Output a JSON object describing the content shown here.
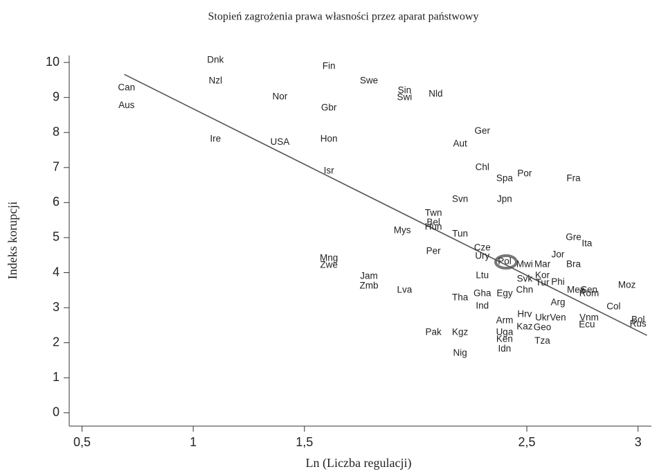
{
  "chart_data": {
    "type": "scatter",
    "title": "Stopień zagrożenia prawa własności przez aparat państwowy",
    "x_label": "Ln (Liczba regulacji)",
    "y_label": "Indeks korupcji",
    "xlim": [
      0.43,
      3.06
    ],
    "ylim": [
      -0.38,
      10.2
    ],
    "xticks": [
      {
        "value": 0.5,
        "label": "0,5"
      },
      1,
      {
        "value": 1.5,
        "label": "1,5"
      },
      {
        "value": 2.5,
        "label": "2,5"
      },
      3
    ],
    "yticks": [
      0,
      1,
      2,
      3,
      4,
      5,
      6,
      7,
      8,
      9,
      10
    ],
    "color": "#222222",
    "trend_line": {
      "x": [
        0.69,
        3.04
      ],
      "y": [
        9.66,
        2.21
      ],
      "color": "#555555"
    },
    "points": [
      {
        "label": "Can",
        "x": 0.7,
        "y": 9.27
      },
      {
        "label": "Aus",
        "x": 0.7,
        "y": 8.77
      },
      {
        "label": "Dnk",
        "x": 1.1,
        "y": 10.06
      },
      {
        "label": "Nzl",
        "x": 1.1,
        "y": 9.47
      },
      {
        "label": "Nor",
        "x": 1.39,
        "y": 9.01
      },
      {
        "label": "Ire",
        "x": 1.1,
        "y": 7.81
      },
      {
        "label": "USA",
        "x": 1.39,
        "y": 7.72
      },
      {
        "label": "Fin",
        "x": 1.61,
        "y": 9.88
      },
      {
        "label": "Gbr",
        "x": 1.61,
        "y": 8.7
      },
      {
        "label": "Hon",
        "x": 1.61,
        "y": 7.81
      },
      {
        "label": "Isr",
        "x": 1.61,
        "y": 6.9
      },
      {
        "label": "Swe",
        "x": 1.79,
        "y": 9.47
      },
      {
        "label": "Sin",
        "x": 1.95,
        "y": 9.19
      },
      {
        "label": "Swi",
        "x": 1.95,
        "y": 8.99
      },
      {
        "label": "Nld",
        "x": 2.09,
        "y": 9.09
      },
      {
        "label": "Ger",
        "x": 2.3,
        "y": 8.04
      },
      {
        "label": "Aut",
        "x": 2.2,
        "y": 7.67
      },
      {
        "label": "Chl",
        "x": 2.3,
        "y": 7.0
      },
      {
        "label": "Spa",
        "x": 2.4,
        "y": 6.68
      },
      {
        "label": "Por",
        "x": 2.49,
        "y": 6.82
      },
      {
        "label": "Fra",
        "x": 2.71,
        "y": 6.68
      },
      {
        "label": "Svn",
        "x": 2.2,
        "y": 6.09
      },
      {
        "label": "Jpn",
        "x": 2.4,
        "y": 6.09
      },
      {
        "label": "Twn",
        "x": 2.08,
        "y": 5.69
      },
      {
        "label": "Bel",
        "x": 2.08,
        "y": 5.43
      },
      {
        "label": "Hun",
        "x": 2.08,
        "y": 5.3
      },
      {
        "label": "Mys",
        "x": 1.94,
        "y": 5.2
      },
      {
        "label": "Tun",
        "x": 2.2,
        "y": 5.1
      },
      {
        "label": "Per",
        "x": 2.08,
        "y": 4.6
      },
      {
        "label": "Cze",
        "x": 2.3,
        "y": 4.7
      },
      {
        "label": "Ury",
        "x": 2.3,
        "y": 4.47
      },
      {
        "label": "Pol",
        "x": 2.4,
        "y": 4.31
      },
      {
        "label": "Mwi",
        "x": 2.49,
        "y": 4.23
      },
      {
        "label": "Mar",
        "x": 2.57,
        "y": 4.23
      },
      {
        "label": "Jor",
        "x": 2.64,
        "y": 4.51
      },
      {
        "label": "Gre",
        "x": 2.71,
        "y": 5.0
      },
      {
        "label": "Ita",
        "x": 2.77,
        "y": 4.82
      },
      {
        "label": "Bra",
        "x": 2.71,
        "y": 4.23
      },
      {
        "label": "Mng",
        "x": 1.61,
        "y": 4.41
      },
      {
        "label": "Zwe",
        "x": 1.61,
        "y": 4.21
      },
      {
        "label": "Jam",
        "x": 1.79,
        "y": 3.89
      },
      {
        "label": "Zmb",
        "x": 1.79,
        "y": 3.62
      },
      {
        "label": "Lva",
        "x": 1.95,
        "y": 3.5
      },
      {
        "label": "Ltu",
        "x": 2.3,
        "y": 3.91
      },
      {
        "label": "Svk",
        "x": 2.49,
        "y": 3.81
      },
      {
        "label": "Kor",
        "x": 2.57,
        "y": 3.91
      },
      {
        "label": "Tur",
        "x": 2.57,
        "y": 3.7
      },
      {
        "label": "Phi",
        "x": 2.64,
        "y": 3.72
      },
      {
        "label": "Chn",
        "x": 2.49,
        "y": 3.5
      },
      {
        "label": "Egy",
        "x": 2.4,
        "y": 3.4
      },
      {
        "label": "Gha",
        "x": 2.3,
        "y": 3.4
      },
      {
        "label": "Tha",
        "x": 2.2,
        "y": 3.28
      },
      {
        "label": "Ind",
        "x": 2.3,
        "y": 3.04
      },
      {
        "label": "Mex",
        "x": 2.72,
        "y": 3.5
      },
      {
        "label": "Sen",
        "x": 2.78,
        "y": 3.5
      },
      {
        "label": "Rom",
        "x": 2.78,
        "y": 3.4
      },
      {
        "label": "Moz",
        "x": 2.95,
        "y": 3.64
      },
      {
        "label": "Arg",
        "x": 2.64,
        "y": 3.14
      },
      {
        "label": "Col",
        "x": 2.89,
        "y": 3.02
      },
      {
        "label": "Hrv",
        "x": 2.49,
        "y": 2.81
      },
      {
        "label": "Ukr",
        "x": 2.57,
        "y": 2.71
      },
      {
        "label": "Ven",
        "x": 2.64,
        "y": 2.71
      },
      {
        "label": "Vnm",
        "x": 2.78,
        "y": 2.71
      },
      {
        "label": "Ecu",
        "x": 2.77,
        "y": 2.51
      },
      {
        "label": "Bol",
        "x": 3.0,
        "y": 2.65
      },
      {
        "label": "Rus",
        "x": 3.0,
        "y": 2.53
      },
      {
        "label": "Arm",
        "x": 2.4,
        "y": 2.63
      },
      {
        "label": "Kaz",
        "x": 2.49,
        "y": 2.45
      },
      {
        "label": "Geo",
        "x": 2.57,
        "y": 2.43
      },
      {
        "label": "Uga",
        "x": 2.4,
        "y": 2.29
      },
      {
        "label": "Ken",
        "x": 2.4,
        "y": 2.09
      },
      {
        "label": "Idn",
        "x": 2.4,
        "y": 1.82
      },
      {
        "label": "Tza",
        "x": 2.57,
        "y": 2.04
      },
      {
        "label": "Pak",
        "x": 2.08,
        "y": 2.29
      },
      {
        "label": "Kgz",
        "x": 2.2,
        "y": 2.29
      },
      {
        "label": "Nig",
        "x": 2.2,
        "y": 1.7
      }
    ]
  }
}
